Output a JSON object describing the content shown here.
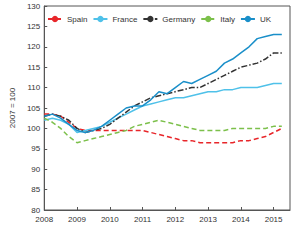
{
  "chart_data": {
    "type": "line",
    "y_label": "2007 = 100",
    "x": [
      2008,
      2008.25,
      2008.5,
      2008.75,
      2009,
      2009.25,
      2009.5,
      2009.75,
      2010,
      2010.25,
      2010.5,
      2010.75,
      2011,
      2011.25,
      2011.5,
      2011.75,
      2012,
      2012.25,
      2012.5,
      2012.75,
      2013,
      2013.25,
      2013.5,
      2013.75,
      2014,
      2014.25,
      2014.5,
      2014.75,
      2015,
      2015.25
    ],
    "series": [
      {
        "name": "Spain",
        "color": "#e8262a",
        "line_style": "dashed",
        "values": [
          103.5,
          103.5,
          103,
          101.5,
          100,
          99.5,
          99.5,
          99.5,
          99.5,
          99.5,
          99.5,
          99.5,
          99.5,
          99,
          98.5,
          98,
          97.5,
          97,
          97,
          96.5,
          96.5,
          96.5,
          96.5,
          96.5,
          97,
          97,
          97.5,
          98,
          99,
          100
        ]
      },
      {
        "name": "France",
        "color": "#4fc1e9",
        "line_style": "solid",
        "values": [
          102,
          102.5,
          102,
          101,
          99,
          99.5,
          100,
          100.5,
          101.5,
          102.5,
          103.5,
          104.5,
          105.5,
          106,
          106.5,
          107,
          107.5,
          107.5,
          108,
          108.5,
          109,
          109,
          109.5,
          109.5,
          110,
          110,
          110,
          110.5,
          111,
          111
        ]
      },
      {
        "name": "Germany",
        "color": "#333333",
        "line_style": "dashdot",
        "values": [
          103,
          103.5,
          103,
          102,
          100,
          99,
          99.5,
          100,
          101,
          102.5,
          104,
          105.5,
          106.5,
          107.5,
          108,
          108.5,
          109,
          109.5,
          110,
          110,
          111,
          112,
          113,
          114,
          115,
          115.5,
          116,
          117,
          118.5,
          118.5
        ]
      },
      {
        "name": "Italy",
        "color": "#7cc04b",
        "line_style": "dashed",
        "values": [
          102.5,
          101.5,
          100,
          98,
          96.5,
          97,
          97.5,
          98,
          98.5,
          99,
          99.5,
          100.5,
          101,
          101.5,
          102,
          101.5,
          101,
          100.5,
          100,
          99.5,
          99.5,
          99.5,
          99.5,
          100,
          100,
          100,
          100,
          100,
          100.5,
          100.5
        ]
      },
      {
        "name": "UK",
        "color": "#1a8fc9",
        "line_style": "solid",
        "values": [
          103,
          103.5,
          102.5,
          101,
          99.5,
          99,
          99.5,
          100.5,
          102,
          103.5,
          105,
          105.5,
          105.5,
          107,
          109,
          108.5,
          110,
          111.5,
          111,
          112,
          113,
          114,
          116,
          117,
          118.5,
          120,
          122,
          122.5,
          123,
          123
        ]
      }
    ],
    "xlim": [
      2008,
      2015.5
    ],
    "xticks": [
      2008,
      2009,
      2010,
      2011,
      2012,
      2013,
      2014,
      2015
    ],
    "ylim": [
      80,
      130
    ],
    "yticks": [
      80,
      85,
      90,
      95,
      100,
      105,
      110,
      115,
      120,
      125,
      130
    ],
    "grid": false,
    "legend": "top"
  }
}
